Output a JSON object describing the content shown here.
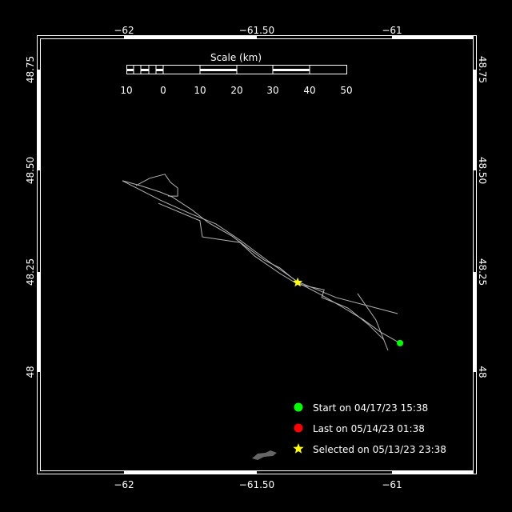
{
  "map": {
    "lon_ticks": [
      -62,
      -61.5,
      -61
    ],
    "lon_tick_labels": [
      "−62",
      "−61.50",
      "−61"
    ],
    "lat_ticks": [
      48.75,
      48.5,
      48.25,
      48
    ],
    "lat_tick_labels": [
      "48.75",
      "48.50",
      "48.25",
      "48"
    ],
    "background": "#000000",
    "frame_color": "#ffffff"
  },
  "scale_bar": {
    "title": "Scale (km)",
    "labels": [
      "10",
      "0",
      "10",
      "20",
      "30",
      "40",
      "50"
    ]
  },
  "track": {
    "color": "#b4b4b4",
    "segments": [
      [
        [
          -62.006,
          48.475
        ],
        [
          -61.94,
          48.463
        ],
        [
          -61.865,
          48.447
        ],
        [
          -61.82,
          48.435
        ],
        [
          -61.746,
          48.403
        ],
        [
          -61.686,
          48.372
        ],
        [
          -61.596,
          48.338
        ],
        [
          -61.536,
          48.308
        ],
        [
          -61.476,
          48.279
        ],
        [
          -61.416,
          48.259
        ],
        [
          -61.35,
          48.223
        ],
        [
          -61.266,
          48.194
        ],
        [
          -61.177,
          48.16
        ],
        [
          -61.102,
          48.13
        ],
        [
          -61.042,
          48.101
        ],
        [
          -60.967,
          48.073
        ]
      ],
      [
        [
          -61.955,
          48.463
        ],
        [
          -61.904,
          48.481
        ],
        [
          -61.847,
          48.491
        ],
        [
          -61.826,
          48.471
        ],
        [
          -61.799,
          48.457
        ],
        [
          -61.799,
          48.437
        ],
        [
          -61.835,
          48.437
        ]
      ],
      [
        [
          -62.006,
          48.475
        ],
        [
          -61.865,
          48.427
        ],
        [
          -61.746,
          48.392
        ],
        [
          -61.656,
          48.368
        ],
        [
          -61.566,
          48.328
        ],
        [
          -61.446,
          48.269
        ],
        [
          -61.35,
          48.225
        ],
        [
          -61.207,
          48.186
        ],
        [
          -60.976,
          48.146
        ]
      ],
      [
        [
          -61.126,
          48.196
        ],
        [
          -61.057,
          48.13
        ],
        [
          -61.012,
          48.055
        ]
      ],
      [
        [
          -61.871,
          48.419
        ],
        [
          -61.716,
          48.376
        ],
        [
          -61.707,
          48.336
        ],
        [
          -61.566,
          48.322
        ],
        [
          -61.512,
          48.289
        ],
        [
          -61.416,
          48.245
        ],
        [
          -61.35,
          48.219
        ],
        [
          -61.251,
          48.205
        ],
        [
          -61.26,
          48.186
        ],
        [
          -61.162,
          48.16
        ],
        [
          -61.087,
          48.12
        ],
        [
          -61.027,
          48.081
        ]
      ]
    ]
  },
  "markers": {
    "start": {
      "lon": -60.967,
      "lat": 48.073,
      "color": "#00ff00"
    },
    "selected": {
      "lon": -61.35,
      "lat": 48.223,
      "color": "#ffff00"
    }
  },
  "legend": {
    "items": [
      {
        "label": "Start on 04/17/23 15:38",
        "color": "#00ff00",
        "symbol": "circle"
      },
      {
        "label": "Last on 05/14/23 01:38",
        "color": "#ff0000",
        "symbol": "circle"
      },
      {
        "label": "Selected on 05/13/23 23:38",
        "color": "#ffff00",
        "symbol": "star"
      }
    ]
  }
}
